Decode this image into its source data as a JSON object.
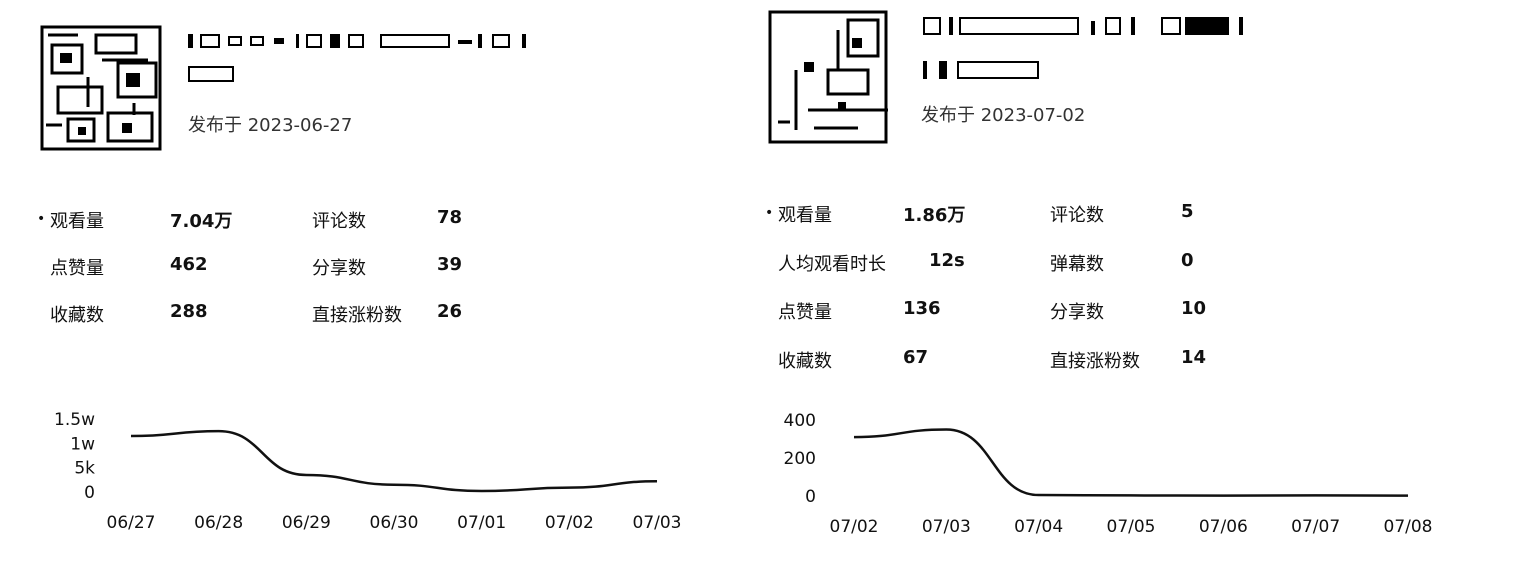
{
  "cards": [
    {
      "published": "发布于 2023-06-27",
      "metrics": [
        {
          "label": "观看量",
          "value": "7.04万",
          "selected": true
        },
        {
          "label": "评论数",
          "value": "78"
        },
        {
          "label": "点赞量",
          "value": "462"
        },
        {
          "label": "分享数",
          "value": "39"
        },
        {
          "label": "收藏数",
          "value": "288"
        },
        {
          "label": "直接涨粉数",
          "value": "26"
        }
      ],
      "chart_data": {
        "type": "line",
        "x": [
          "06/27",
          "06/28",
          "06/29",
          "06/30",
          "07/01",
          "07/02",
          "07/03"
        ],
        "y_ticks": [
          "1.5w",
          "1w",
          "5k",
          "0"
        ],
        "ylim": [
          0,
          15000
        ],
        "series": [
          {
            "values": [
              11500,
              12500,
              3500,
              1500,
              200,
              900,
              2200
            ]
          }
        ]
      }
    },
    {
      "published": "发布于 2023-07-02",
      "metrics": [
        {
          "label": "观看量",
          "value": "1.86万",
          "selected": true
        },
        {
          "label": "评论数",
          "value": "5"
        },
        {
          "label": "人均观看时长",
          "value": "12s"
        },
        {
          "label": "弹幕数",
          "value": "0"
        },
        {
          "label": "点赞量",
          "value": "136"
        },
        {
          "label": "分享数",
          "value": "10"
        },
        {
          "label": "收藏数",
          "value": "67"
        },
        {
          "label": "直接涨粉数",
          "value": "14"
        }
      ],
      "chart_data": {
        "type": "line",
        "x": [
          "07/02",
          "07/03",
          "07/04",
          "07/05",
          "07/06",
          "07/07",
          "07/08"
        ],
        "y_ticks": [
          "400",
          "200",
          "0"
        ],
        "ylim": [
          0,
          400
        ],
        "series": [
          {
            "values": [
              310,
              350,
              5,
              3,
              2,
              3,
              2
            ]
          }
        ]
      }
    }
  ]
}
